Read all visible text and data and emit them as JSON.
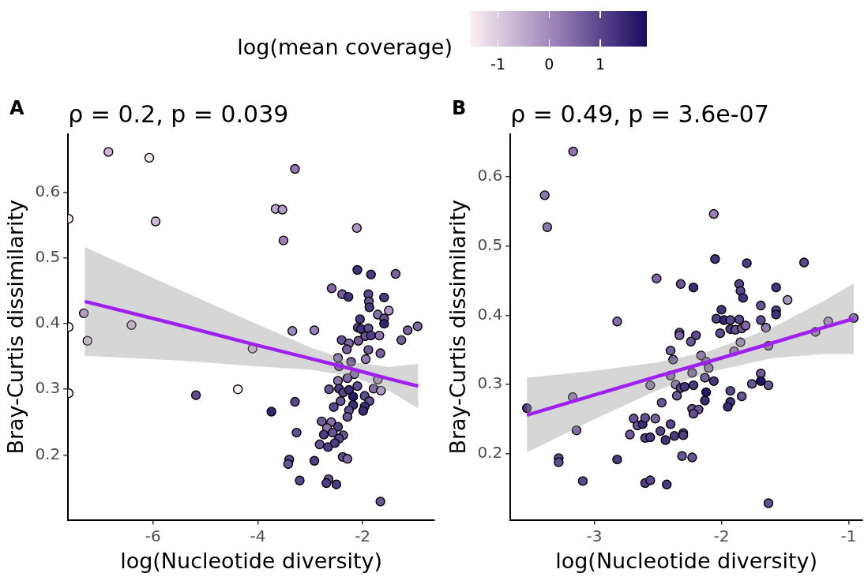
{
  "chart_data": [
    {
      "type": "scatter",
      "title": "ρ = 0.2, p = 0.039",
      "annotations": [
        "A"
      ],
      "xlabel": "log(Nucleotide diversity)",
      "ylabel": "Bray-Curtis dissimilarity",
      "clabel": "log(mean coverage)",
      "clim": [
        -1.55,
        1.91
      ],
      "cticks": [
        -1,
        0,
        1
      ],
      "xlim": [
        -7.62,
        -0.63
      ],
      "xticks": [
        -6,
        -4,
        -2
      ],
      "ylim": [
        0.101,
        0.689
      ],
      "yticks": [
        0.2,
        0.3,
        0.4,
        0.5,
        0.6
      ],
      "grid": false,
      "legend": false,
      "series": [
        {
          "type": "scatter",
          "marker": "circle",
          "x": [
            -6.85,
            -6.07,
            -7.61,
            -5.95,
            -3.29,
            -3.66,
            -3.53,
            -3.51,
            -7.32,
            -7.61,
            -6.41,
            -7.25,
            -4.1,
            -3.34,
            -7.61,
            -5.18,
            -4.38,
            -3.74,
            -2.11,
            -2.1,
            -1.84,
            -1.37,
            -2.59,
            -2.39,
            -2.27,
            -1.89,
            -1.88,
            -1.87,
            -1.59,
            -1.5,
            -1.71,
            -2.05,
            -1.59,
            -1.59,
            -2.09,
            -2.03,
            -1.89,
            -1.95,
            -1.84,
            -1.68,
            -2.08,
            -1.14,
            -0.95,
            -1.26,
            -2.92,
            -2.4,
            -2.26,
            -2.3,
            -1.89,
            -1.66,
            -2.47,
            -2.22,
            -1.94,
            -2.45,
            -2.16,
            -2.29,
            -1.71,
            -2.47,
            -2.1,
            -1.79,
            -1.65,
            -2.64,
            -2.45,
            -2.37,
            -2.26,
            -2.18,
            -1.96,
            -1.87,
            -2.42,
            -2.18,
            -2.55,
            -1.96,
            -1.99,
            -2.26,
            -2.29,
            -3.29,
            -2.78,
            -2.6,
            -2.68,
            -2.47,
            -2.74,
            -2.57,
            -2.37,
            -2.45,
            -2.82,
            -2.66,
            -2.53,
            -3.26,
            -3.4,
            -3.42,
            -2.92,
            -2.38,
            -2.29,
            -3.2,
            -2.65,
            -2.69,
            -2.5,
            -1.66
          ],
          "values": [
            0.662,
            0.653,
            0.56,
            0.556,
            0.636,
            0.575,
            0.574,
            0.527,
            0.416,
            0.395,
            0.398,
            0.374,
            0.362,
            0.389,
            0.294,
            0.291,
            0.3,
            0.266,
            0.546,
            0.482,
            0.475,
            0.476,
            0.454,
            0.445,
            0.441,
            0.445,
            0.434,
            0.425,
            0.44,
            0.42,
            0.414,
            0.407,
            0.408,
            0.4,
            0.394,
            0.392,
            0.393,
            0.381,
            0.382,
            0.382,
            0.374,
            0.39,
            0.396,
            0.375,
            0.39,
            0.375,
            0.37,
            0.361,
            0.36,
            0.355,
            0.348,
            0.342,
            0.346,
            0.335,
            0.323,
            0.317,
            0.315,
            0.313,
            0.305,
            0.301,
            0.298,
            0.3,
            0.301,
            0.295,
            0.299,
            0.289,
            0.29,
            0.282,
            0.282,
            0.276,
            0.273,
            0.274,
            0.267,
            0.268,
            0.258,
            0.281,
            0.251,
            0.25,
            0.241,
            0.243,
            0.231,
            0.234,
            0.23,
            0.225,
            0.216,
            0.212,
            0.218,
            0.234,
            0.193,
            0.186,
            0.191,
            0.197,
            0.194,
            0.161,
            0.163,
            0.157,
            0.155,
            0.129
          ],
          "colors": [
            "#cab8d4",
            "#f4e6ee",
            "#faedf1",
            "#cab8d4",
            "#947cb3",
            "#beaacd",
            "#b39dc5",
            "#9b82b7",
            "#b39dc5",
            "#faedf1",
            "#d6c5db",
            "#dccbdf",
            "#dccbdf",
            "#a189bb",
            "#faedf1",
            "#614d91",
            "#faedf1",
            "#352573",
            "#ad96c2",
            "#44337d",
            "#4b3982",
            "#77619f",
            "#7f68a4",
            "#77619f",
            "#44337d",
            "#5a468c",
            "#695496",
            "#4b3982",
            "#4b3982",
            "#ad96c2",
            "#866ea9",
            "#4b3982",
            "#614d91",
            "#352573",
            "#5a468c",
            "#44337d",
            "#614d91",
            "#695496",
            "#524087",
            "#8d75ae",
            "#705a9a",
            "#77619f",
            "#7f68a4",
            "#77619f",
            "#9b82b7",
            "#695496",
            "#7f68a4",
            "#77619f",
            "#705a9a",
            "#77619f",
            "#8d75ae",
            "#77619f",
            "#947cb3",
            "#705a9a",
            "#866ea9",
            "#7f68a4",
            "#ad96c2",
            "#8d75ae",
            "#614d91",
            "#866ea9",
            "#b39dc5",
            "#695496",
            "#4b3982",
            "#5a468c",
            "#3c2c78",
            "#261869",
            "#614d91",
            "#614d91",
            "#695496",
            "#3c2c78",
            "#5a468c",
            "#3c2c78",
            "#3c2c78",
            "#614d91",
            "#695496",
            "#5a468c",
            "#705a9a",
            "#866ea9",
            "#8d75ae",
            "#524087",
            "#4b3982",
            "#695496",
            "#695496",
            "#5a468c",
            "#695496",
            "#524087",
            "#4b3982",
            "#614d91",
            "#5a468c",
            "#695496",
            "#524087",
            "#614d91",
            "#7f68a4",
            "#5a468c",
            "#695496",
            "#524087",
            "#4b3982",
            "#695496"
          ]
        },
        {
          "type": "line",
          "marker": "none",
          "color": "#a020f0",
          "x": [
            -7.3,
            -5.5,
            -4,
            -3,
            -2.2,
            -1.5,
            -0.94
          ],
          "values": [
            0.434,
            0.398,
            0.367,
            0.347,
            0.331,
            0.316,
            0.305
          ],
          "lower": [
            0.351,
            0.344,
            0.335,
            0.33,
            0.32,
            0.298,
            0.271
          ],
          "upper": [
            0.517,
            0.452,
            0.399,
            0.364,
            0.342,
            0.334,
            0.339
          ]
        }
      ]
    },
    {
      "type": "scatter",
      "title": "ρ = 0.49, p = 3.6e-07",
      "annotations": [
        "B"
      ],
      "xlabel": "log(Nucleotide diversity)",
      "ylabel": "Bray-Curtis dissimilarity",
      "xlim": [
        -3.66,
        -0.89
      ],
      "xticks": [
        -3,
        -2,
        -1
      ],
      "ylim": [
        0.105,
        0.661
      ],
      "yticks": [
        0.2,
        0.3,
        0.4,
        0.5,
        0.6
      ],
      "grid": false,
      "legend": false,
      "series": [
        {
          "type": "scatter",
          "marker": "circle",
          "x": [
            -3.166,
            -3.39,
            -3.37,
            -2.51,
            -2.82,
            -3.53,
            -3.17,
            -3.14,
            -3.28,
            -3.28,
            -3.09,
            -2.82,
            -2.56,
            -2.69,
            -2.66,
            -2.62,
            -2.6,
            -2.52,
            -2.72,
            -2.6,
            -2.56,
            -2.6,
            -2.56,
            -2.47,
            -2.48,
            -2.06,
            -2.05,
            -1.8,
            -1.35,
            -2.32,
            -2.22,
            -1.86,
            -1.85,
            -1.83,
            -1.57,
            -1.48,
            -1.69,
            -1.57,
            -1.57,
            -2.0,
            -2.04,
            -1.98,
            -1.93,
            -1.86,
            -1.93,
            -1.89,
            -1.84,
            -1.81,
            -1.69,
            -1.65,
            -2.01,
            -2.33,
            -2.33,
            -2.2,
            -2.24,
            -1.85,
            -1.9,
            -1.63,
            -1.26,
            -1.16,
            -0.96,
            -2.4,
            -2.38,
            -2.16,
            -2.12,
            -2.1,
            -2.23,
            -2.4,
            -2.13,
            -2.06,
            -2.36,
            -2.32,
            -2.29,
            -2.22,
            -2.12,
            -2.13,
            -2.35,
            -2.23,
            -2.18,
            -2.22,
            -1.93,
            -1.84,
            -1.93,
            -1.95,
            -1.69,
            -1.69,
            -1.76,
            -1.63,
            -2.4,
            -2.37,
            -2.3,
            -2.3,
            -2.44,
            -2.31,
            -2.23,
            -2.43,
            -1.63
          ],
          "values": [
            0.636,
            0.573,
            0.527,
            0.453,
            0.391,
            0.266,
            0.282,
            0.234,
            0.194,
            0.188,
            0.161,
            0.192,
            0.299,
            0.251,
            0.241,
            0.243,
            0.252,
            0.251,
            0.228,
            0.223,
            0.224,
            0.158,
            0.162,
            0.274,
            0.233,
            0.546,
            0.481,
            0.475,
            0.476,
            0.445,
            0.44,
            0.445,
            0.435,
            0.425,
            0.44,
            0.422,
            0.414,
            0.407,
            0.401,
            0.408,
            0.395,
            0.393,
            0.393,
            0.394,
            0.38,
            0.379,
            0.381,
            0.385,
            0.393,
            0.382,
            0.374,
            0.375,
            0.371,
            0.371,
            0.362,
            0.361,
            0.348,
            0.356,
            0.376,
            0.391,
            0.396,
            0.349,
            0.336,
            0.342,
            0.333,
            0.324,
            0.317,
            0.313,
            0.31,
            0.305,
            0.3,
            0.295,
            0.297,
            0.299,
            0.289,
            0.277,
            0.284,
            0.265,
            0.264,
            0.258,
            0.291,
            0.283,
            0.275,
            0.268,
            0.316,
            0.305,
            0.301,
            0.299,
            0.243,
            0.226,
            0.23,
            0.227,
            0.22,
            0.197,
            0.195,
            0.156,
            0.129
          ],
          "colors": [
            "#8d75ae",
            "#8d75ae",
            "#8d75ae",
            "#7f68a4",
            "#866ea9",
            "#4b3982",
            "#947cb3",
            "#866ea9",
            "#5a468c",
            "#614d91",
            "#5a468c",
            "#4b3982",
            "#947cb3",
            "#695496",
            "#695496",
            "#3c2c78",
            "#614d91",
            "#77619f",
            "#705a9a",
            "#524087",
            "#4b3982",
            "#524087",
            "#5a468c",
            "#695496",
            "#5a468c",
            "#9b82b7",
            "#44337d",
            "#4b3982",
            "#5a468c",
            "#695496",
            "#3c2c78",
            "#5a468c",
            "#5a468c",
            "#44337d",
            "#44337d",
            "#ad96c2",
            "#695496",
            "#5a468c",
            "#44337d",
            "#44337d",
            "#524087",
            "#352573",
            "#5a468c",
            "#5a468c",
            "#4b3982",
            "#614d91",
            "#705a9a",
            "#7f68a4",
            "#614d91",
            "#947cb3",
            "#614d91",
            "#5a468c",
            "#77619f",
            "#614d91",
            "#695496",
            "#a189bb",
            "#947cb3",
            "#8d75ae",
            "#9b82b7",
            "#ad96c2",
            "#866ea9",
            "#77619f",
            "#77619f",
            "#8d75ae",
            "#866ea9",
            "#947cb3",
            "#866ea9",
            "#8d75ae",
            "#77619f",
            "#4b3982",
            "#8d75ae",
            "#5a468c",
            "#44337d",
            "#4b3982",
            "#261869",
            "#3c2c78",
            "#705a9a",
            "#695496",
            "#695496",
            "#614d91",
            "#5a468c",
            "#695496",
            "#44337d",
            "#3c2c78",
            "#705a9a",
            "#1f1164",
            "#695496",
            "#695496",
            "#5a468c",
            "#4b3982",
            "#5a468c",
            "#524087",
            "#44337d",
            "#695496",
            "#695496",
            "#4b3982",
            "#614d91"
          ]
        },
        {
          "type": "line",
          "marker": "none",
          "color": "#a020f0",
          "x": [
            -3.53,
            -3,
            -2.5,
            -2.1,
            -1.6,
            -1.2,
            -0.96
          ],
          "values": [
            0.256,
            0.285,
            0.312,
            0.333,
            0.36,
            0.382,
            0.395
          ],
          "lower": [
            0.202,
            0.25,
            0.292,
            0.318,
            0.338,
            0.344,
            0.344
          ],
          "upper": [
            0.31,
            0.32,
            0.332,
            0.348,
            0.382,
            0.42,
            0.446
          ]
        }
      ]
    }
  ]
}
